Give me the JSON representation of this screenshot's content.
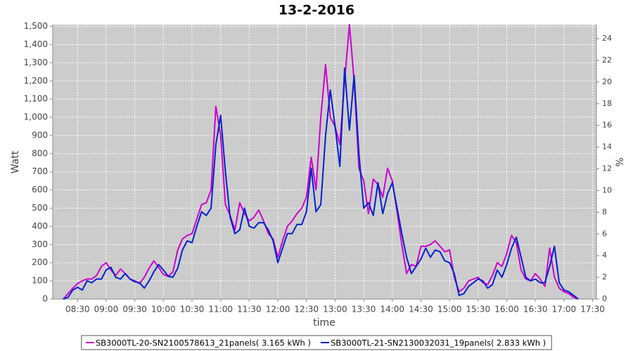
{
  "chart_data": {
    "type": "line",
    "title": "13-2-2016",
    "x_label": "time",
    "y_label": "Watt",
    "y2_label": "%",
    "grid": true,
    "legend": "bottom",
    "xlim": [
      "08:04",
      "17:34"
    ],
    "xticks": [
      "08:30",
      "09:00",
      "09:30",
      "10:00",
      "10:30",
      "11:00",
      "11:30",
      "12:00",
      "12:30",
      "13:00",
      "13:30",
      "14:00",
      "14:30",
      "15:00",
      "15:30",
      "16:00",
      "16:30",
      "17:00",
      "17:30"
    ],
    "ylim": [
      0,
      1510
    ],
    "yticks": [
      0,
      100,
      200,
      300,
      400,
      500,
      600,
      700,
      800,
      900,
      {
        "value": 1000,
        "label": "1,000"
      },
      {
        "value": 1100,
        "label": "1,100"
      },
      {
        "value": 1200,
        "label": "1,200"
      },
      {
        "value": 1300,
        "label": "1,300"
      },
      {
        "value": 1400,
        "label": "1,400"
      },
      {
        "value": 1500,
        "label": "1,500"
      }
    ],
    "y2lim": [
      0,
      25.3
    ],
    "y2ticks": [
      0,
      2,
      4,
      6,
      8,
      10,
      12,
      14,
      16,
      18,
      20,
      22,
      24
    ],
    "x": [
      "08:15",
      "08:20",
      "08:25",
      "08:30",
      "08:35",
      "08:40",
      "08:45",
      "08:50",
      "08:55",
      "09:00",
      "09:05",
      "09:10",
      "09:15",
      "09:20",
      "09:25",
      "09:30",
      "09:35",
      "09:40",
      "09:45",
      "09:50",
      "09:55",
      "10:00",
      "10:05",
      "10:10",
      "10:15",
      "10:20",
      "10:25",
      "10:30",
      "10:35",
      "10:40",
      "10:45",
      "10:50",
      "10:55",
      "11:00",
      "11:05",
      "11:10",
      "11:15",
      "11:20",
      "11:25",
      "11:30",
      "11:35",
      "11:40",
      "11:45",
      "11:50",
      "11:55",
      "12:00",
      "12:05",
      "12:10",
      "12:15",
      "12:20",
      "12:25",
      "12:30",
      "12:35",
      "12:40",
      "12:45",
      "12:50",
      "12:55",
      "13:00",
      "13:05",
      "13:10",
      "13:15",
      "13:20",
      "13:25",
      "13:30",
      "13:35",
      "13:40",
      "13:45",
      "13:50",
      "13:55",
      "14:00",
      "14:05",
      "14:10",
      "14:15",
      "14:20",
      "14:25",
      "14:30",
      "14:35",
      "14:40",
      "14:45",
      "14:50",
      "14:55",
      "15:00",
      "15:05",
      "15:10",
      "15:15",
      "15:20",
      "15:25",
      "15:30",
      "15:35",
      "15:40",
      "15:45",
      "15:50",
      "15:55",
      "16:00",
      "16:05",
      "16:10",
      "16:15",
      "16:20",
      "16:25",
      "16:30",
      "16:35",
      "16:40",
      "16:45",
      "16:50",
      "16:55",
      "17:00",
      "17:05",
      "17:10",
      "17:15"
    ],
    "series": [
      {
        "name": "SB3000TL-20-SN2100578613_21panels( 3.165 kWh )",
        "color": "#cc00cc",
        "values": [
          0,
          30,
          60,
          85,
          100,
          110,
          110,
          130,
          180,
          200,
          160,
          130,
          165,
          140,
          110,
          100,
          85,
          120,
          170,
          210,
          175,
          135,
          125,
          150,
          270,
          330,
          350,
          360,
          440,
          520,
          530,
          600,
          1060,
          900,
          520,
          460,
          380,
          530,
          470,
          430,
          450,
          490,
          430,
          360,
          330,
          230,
          320,
          400,
          430,
          470,
          500,
          560,
          780,
          600,
          1000,
          1290,
          1000,
          950,
          850,
          1200,
          1510,
          1200,
          720,
          650,
          470,
          660,
          630,
          560,
          720,
          650,
          480,
          300,
          140,
          190,
          180,
          290,
          290,
          300,
          320,
          290,
          260,
          270,
          120,
          40,
          60,
          100,
          110,
          120,
          90,
          80,
          130,
          200,
          180,
          250,
          350,
          310,
          160,
          110,
          100,
          140,
          110,
          70,
          280,
          120,
          60,
          40,
          30,
          10,
          0
        ]
      },
      {
        "name": "SB3000TL-21-SN2130032031_19panels( 2.833 kWh )",
        "color": "#0022cc",
        "values": [
          0,
          10,
          50,
          65,
          50,
          100,
          90,
          110,
          110,
          160,
          175,
          120,
          110,
          140,
          110,
          95,
          90,
          60,
          100,
          150,
          190,
          160,
          125,
          120,
          170,
          270,
          320,
          310,
          400,
          480,
          460,
          500,
          850,
          1010,
          700,
          450,
          360,
          380,
          500,
          400,
          390,
          420,
          420,
          380,
          320,
          200,
          280,
          360,
          360,
          410,
          410,
          480,
          720,
          480,
          520,
          900,
          1150,
          950,
          730,
          1270,
          930,
          1230,
          800,
          500,
          530,
          460,
          640,
          470,
          580,
          640,
          500,
          360,
          230,
          140,
          180,
          220,
          280,
          230,
          270,
          260,
          210,
          200,
          140,
          20,
          30,
          70,
          90,
          110,
          100,
          60,
          80,
          160,
          120,
          190,
          280,
          340,
          230,
          120,
          100,
          110,
          90,
          90,
          180,
          290,
          90,
          50,
          40,
          20,
          0
        ]
      }
    ]
  }
}
